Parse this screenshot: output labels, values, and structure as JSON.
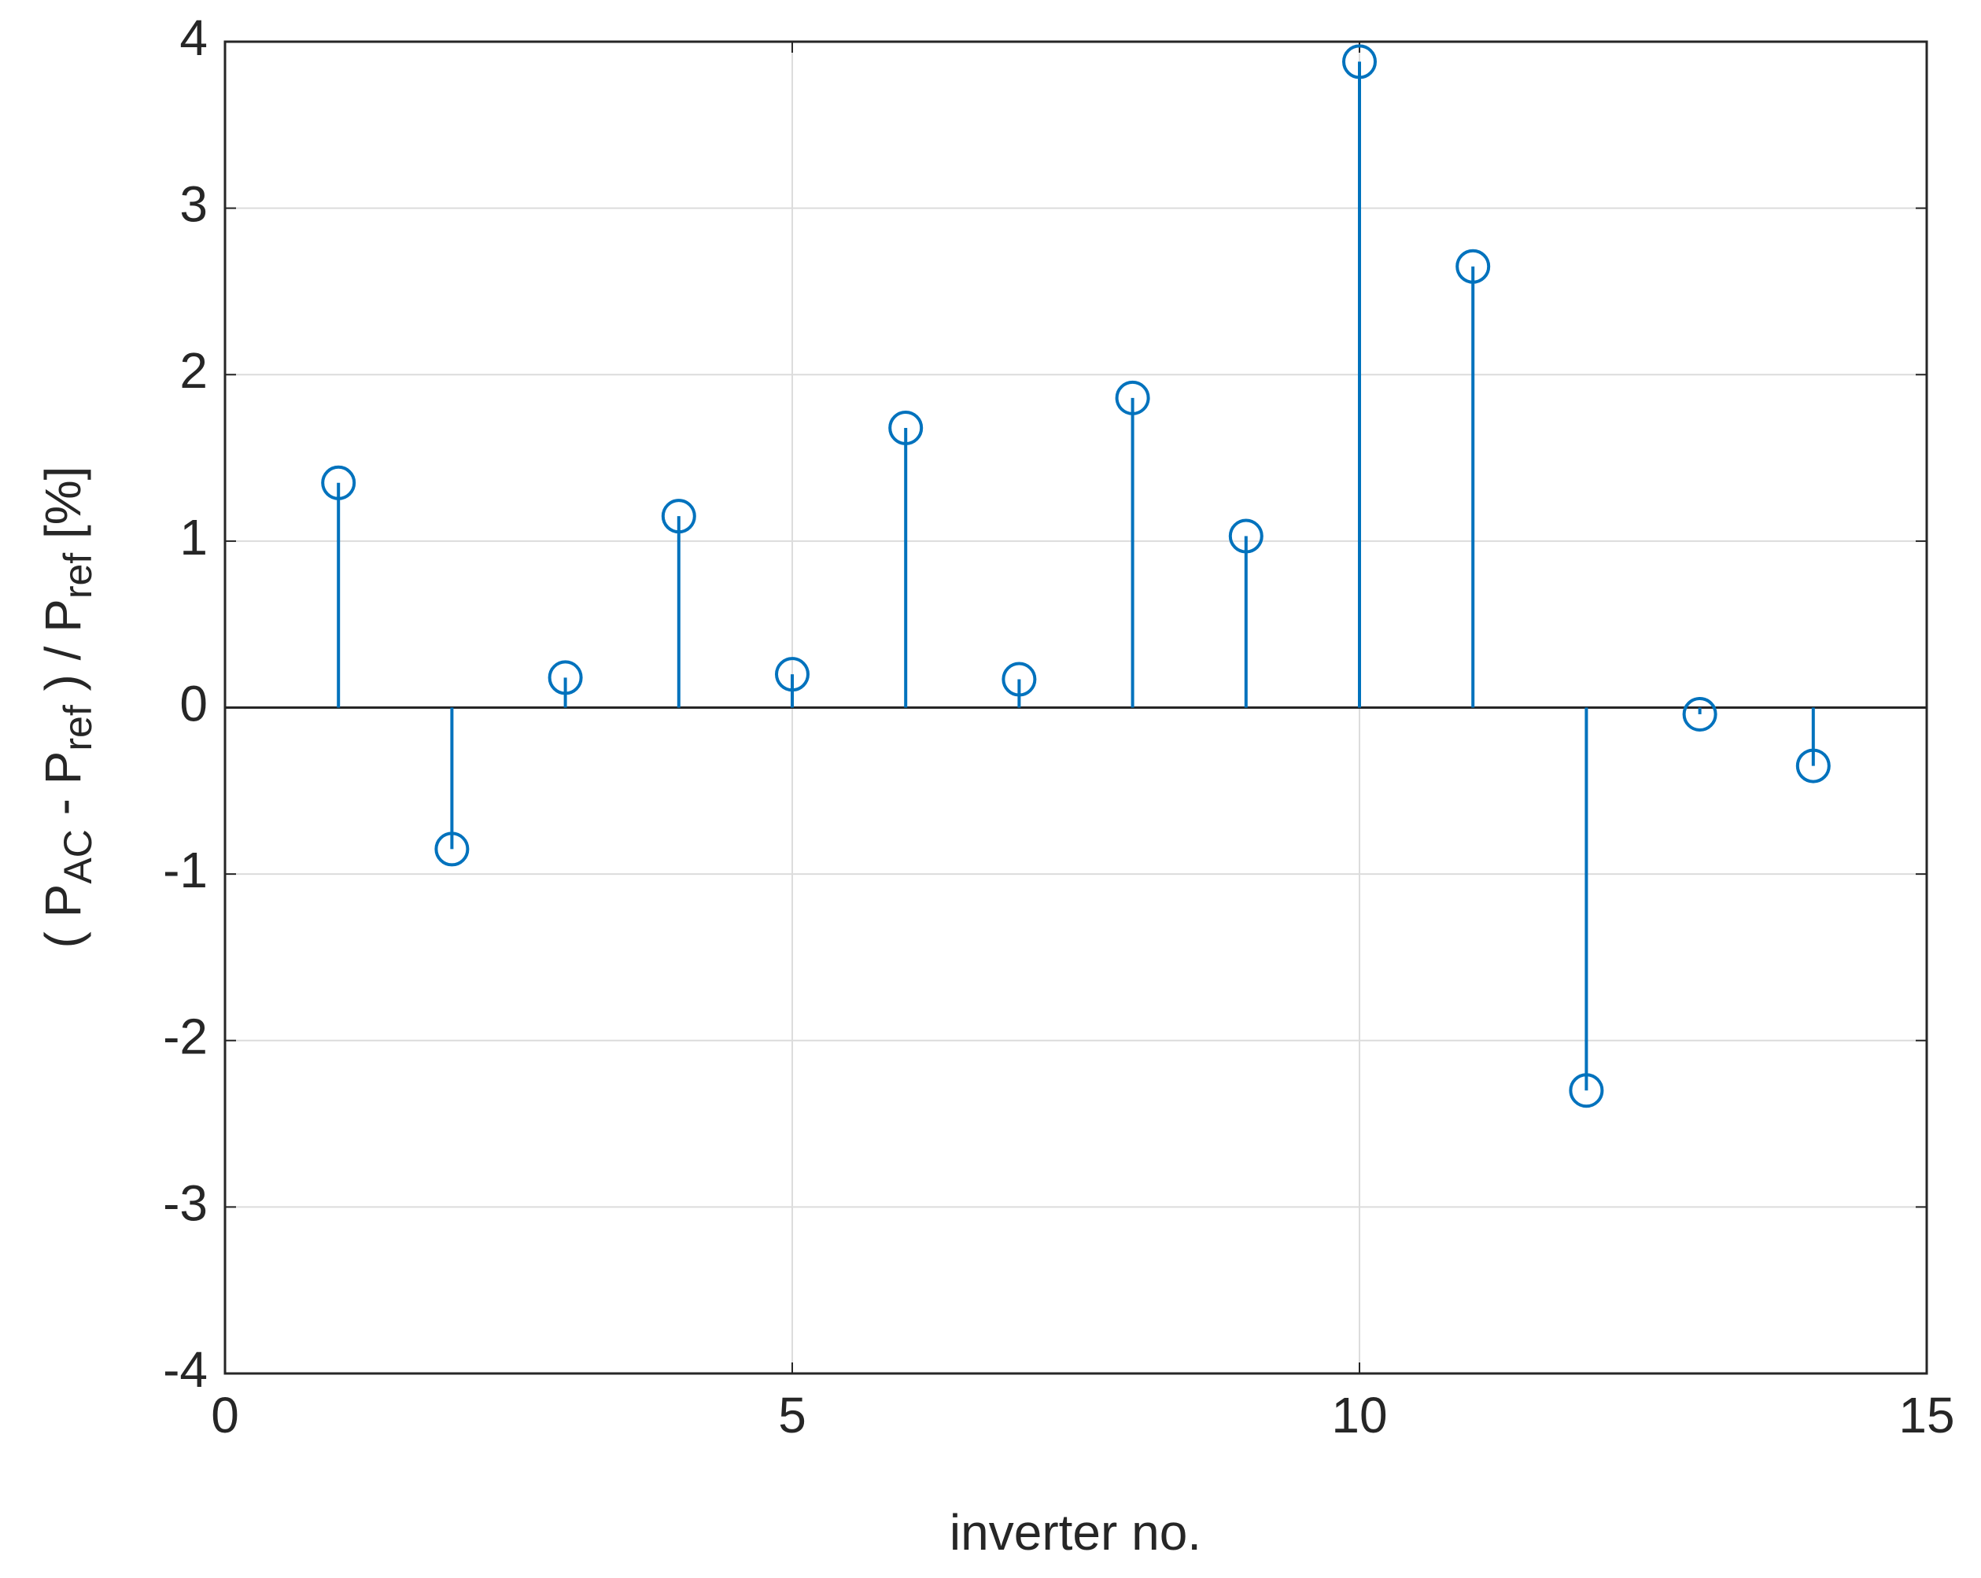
{
  "chart_data": {
    "type": "stem",
    "xlabel": "inverter no.",
    "ylabel": [
      {
        "text": "( P"
      },
      {
        "text": "AC",
        "sub": true
      },
      {
        "text": " - P"
      },
      {
        "text": "ref",
        "sub": true
      },
      {
        "text": " ) / P"
      },
      {
        "text": "ref",
        "sub": true
      },
      {
        "text": " [%]"
      }
    ],
    "x": [
      1,
      2,
      3,
      4,
      5,
      6,
      7,
      8,
      9,
      10,
      11,
      12,
      13,
      14
    ],
    "values": [
      1.35,
      -0.85,
      0.18,
      1.15,
      0.2,
      1.68,
      0.17,
      1.86,
      1.03,
      3.88,
      2.65,
      -2.3,
      -0.04,
      -0.35
    ],
    "color": "#0072bd",
    "xlim": [
      0,
      15
    ],
    "xticks": [
      0,
      5,
      10,
      15
    ],
    "ylim": [
      -4,
      4
    ],
    "yticks": [
      -4,
      -3,
      -2,
      -1,
      0,
      1,
      2,
      3,
      4
    ],
    "grid": true
  }
}
